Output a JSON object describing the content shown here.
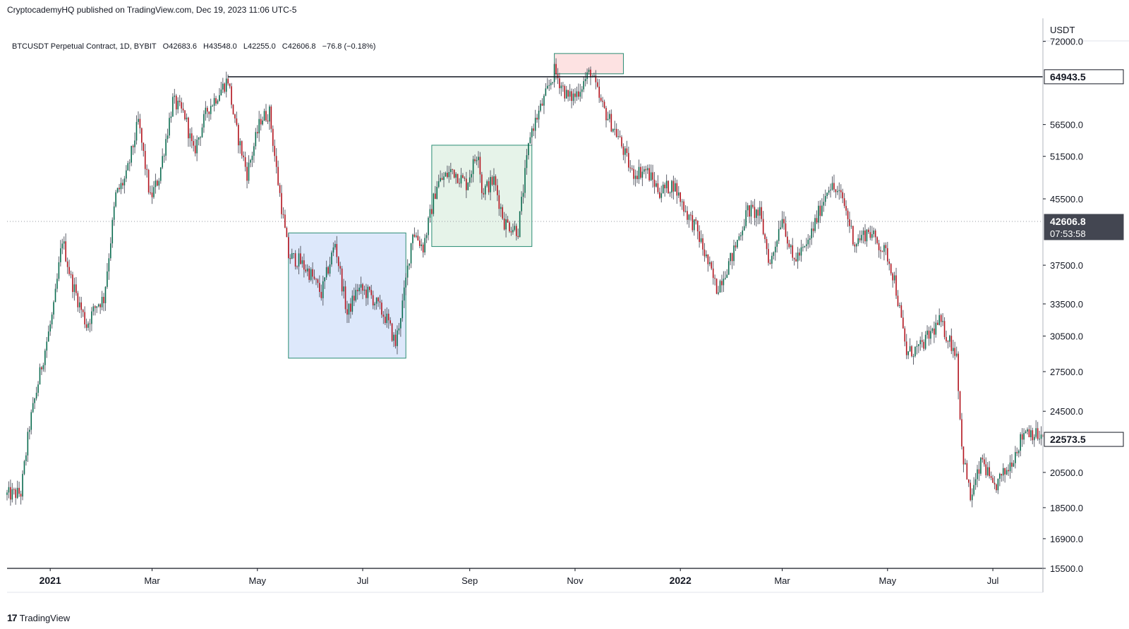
{
  "header": {
    "publish_line": "CryptocademyHQ published on TradingView.com, Dec 19, 2023 11:06 UTC-5"
  },
  "symbol": {
    "name": "BTCUSDT Perpetual Contract, 1D, BYBIT",
    "open": "O42683.6",
    "high": "H43548.0",
    "low": "L42255.0",
    "close": "C42606.8",
    "change": "−76.8 (−0.18%)"
  },
  "footer": {
    "brand": "TradingView",
    "mark": "17"
  },
  "colors": {
    "up": "#0a6b4f",
    "down": "#b3141e",
    "wick": "#5d606b",
    "blue_zone": "#dde8fb",
    "green_zone": "#e6f3e9",
    "red_zone": "#fde2e2",
    "zone_border": "#2a8c74"
  },
  "chart_data": {
    "type": "candlestick",
    "currency": "USDT",
    "y_scale": "log",
    "ylim": [
      15500,
      77000
    ],
    "x_range": [
      "2020-12-07",
      "2022-07-30"
    ],
    "x_ticks": [
      {
        "date": "2021-01-01",
        "label": "2021",
        "bold": true
      },
      {
        "date": "2021-03-01",
        "label": "Mar",
        "bold": false
      },
      {
        "date": "2021-05-01",
        "label": "May",
        "bold": false
      },
      {
        "date": "2021-07-01",
        "label": "Jul",
        "bold": false
      },
      {
        "date": "2021-09-01",
        "label": "Sep",
        "bold": false
      },
      {
        "date": "2021-11-01",
        "label": "Nov",
        "bold": false
      },
      {
        "date": "2022-01-01",
        "label": "2022",
        "bold": true
      },
      {
        "date": "2022-03-01",
        "label": "Mar",
        "bold": false
      },
      {
        "date": "2022-05-01",
        "label": "May",
        "bold": false
      },
      {
        "date": "2022-07-01",
        "label": "Jul",
        "bold": false
      }
    ],
    "y_ticks": [
      {
        "value": 72000,
        "label": "72000.0"
      },
      {
        "value": 56500,
        "label": "56500.0"
      },
      {
        "value": 51500,
        "label": "51500.0"
      },
      {
        "value": 45500,
        "label": "45500.0"
      },
      {
        "value": 37500,
        "label": "37500.0"
      },
      {
        "value": 33500,
        "label": "33500.0"
      },
      {
        "value": 30500,
        "label": "30500.0"
      },
      {
        "value": 27500,
        "label": "27500.0"
      },
      {
        "value": 24500,
        "label": "24500.0"
      },
      {
        "value": 20500,
        "label": "20500.0"
      },
      {
        "value": 18500,
        "label": "18500.0"
      },
      {
        "value": 16900,
        "label": "16900.0"
      },
      {
        "value": 15500,
        "label": "15500.0"
      }
    ],
    "horizontal_line": {
      "value": 64943.5,
      "label": "64943.5",
      "start_date": "2021-04-14"
    },
    "current_price": {
      "value": 42606.8,
      "label": "42606.8",
      "timer": "07:53:58"
    },
    "last_price": {
      "value": 22573.5,
      "label": "22573.5"
    },
    "zones": [
      {
        "name": "blue",
        "start": "2021-05-19",
        "end": "2021-07-26",
        "low": 28600,
        "high": 41200
      },
      {
        "name": "green",
        "start": "2021-08-10",
        "end": "2021-10-07",
        "low": 39600,
        "high": 53200
      },
      {
        "name": "red",
        "start": "2021-10-20",
        "end": "2021-11-29",
        "low": 65500,
        "high": 69500
      }
    ],
    "anchors": [
      [
        "2020-12-07",
        19200
      ],
      [
        "2020-12-15",
        19300
      ],
      [
        "2020-12-20",
        23500
      ],
      [
        "2020-12-27",
        28000
      ],
      [
        "2021-01-03",
        33000
      ],
      [
        "2021-01-08",
        40500
      ],
      [
        "2021-01-13",
        36000
      ],
      [
        "2021-01-22",
        31500
      ],
      [
        "2021-01-28",
        33500
      ],
      [
        "2021-02-01",
        34000
      ],
      [
        "2021-02-08",
        46000
      ],
      [
        "2021-02-14",
        48500
      ],
      [
        "2021-02-21",
        57000
      ],
      [
        "2021-02-28",
        45500
      ],
      [
        "2021-03-05",
        48500
      ],
      [
        "2021-03-13",
        60500
      ],
      [
        "2021-03-20",
        58000
      ],
      [
        "2021-03-25",
        52000
      ],
      [
        "2021-04-02",
        59000
      ],
      [
        "2021-04-14",
        64500
      ],
      [
        "2021-04-18",
        56500
      ],
      [
        "2021-04-25",
        49000
      ],
      [
        "2021-05-03",
        57500
      ],
      [
        "2021-05-08",
        58500
      ],
      [
        "2021-05-12",
        49500
      ],
      [
        "2021-05-19",
        38500
      ],
      [
        "2021-05-25",
        38000
      ],
      [
        "2021-06-01",
        36500
      ],
      [
        "2021-06-07",
        34500
      ],
      [
        "2021-06-15",
        40000
      ],
      [
        "2021-06-22",
        32500
      ],
      [
        "2021-06-28",
        35000
      ],
      [
        "2021-07-05",
        34500
      ],
      [
        "2021-07-15",
        32000
      ],
      [
        "2021-07-20",
        29800
      ],
      [
        "2021-07-25",
        34500
      ],
      [
        "2021-07-30",
        41500
      ],
      [
        "2021-08-05",
        39500
      ],
      [
        "2021-08-13",
        47500
      ],
      [
        "2021-08-22",
        49500
      ],
      [
        "2021-08-30",
        47500
      ],
      [
        "2021-09-06",
        52500
      ],
      [
        "2021-09-08",
        46500
      ],
      [
        "2021-09-15",
        48000
      ],
      [
        "2021-09-21",
        42500
      ],
      [
        "2021-09-29",
        41500
      ],
      [
        "2021-10-06",
        55000
      ],
      [
        "2021-10-15",
        61500
      ],
      [
        "2021-10-20",
        66000
      ],
      [
        "2021-10-28",
        61000
      ],
      [
        "2021-11-01",
        61500
      ],
      [
        "2021-11-10",
        66000
      ],
      [
        "2021-11-16",
        60000
      ],
      [
        "2021-11-26",
        54500
      ],
      [
        "2021-12-04",
        49000
      ],
      [
        "2021-12-12",
        49500
      ],
      [
        "2021-12-20",
        46500
      ],
      [
        "2021-12-28",
        47500
      ],
      [
        "2022-01-05",
        43500
      ],
      [
        "2022-01-10",
        41800
      ],
      [
        "2022-01-22",
        35000
      ],
      [
        "2022-01-31",
        38500
      ],
      [
        "2022-02-09",
        44000
      ],
      [
        "2022-02-16",
        43500
      ],
      [
        "2022-02-22",
        37500
      ],
      [
        "2022-03-01",
        43500
      ],
      [
        "2022-03-07",
        38000
      ],
      [
        "2022-03-15",
        39500
      ],
      [
        "2022-03-28",
        47500
      ],
      [
        "2022-04-05",
        45500
      ],
      [
        "2022-04-12",
        40000
      ],
      [
        "2022-04-20",
        41500
      ],
      [
        "2022-05-01",
        38500
      ],
      [
        "2022-05-05",
        36000
      ],
      [
        "2022-05-12",
        29000
      ],
      [
        "2022-05-20",
        29500
      ],
      [
        "2022-05-31",
        31800
      ],
      [
        "2022-06-10",
        29000
      ],
      [
        "2022-06-13",
        22000
      ],
      [
        "2022-06-18",
        19000
      ],
      [
        "2022-06-25",
        21300
      ],
      [
        "2022-07-01",
        19500
      ],
      [
        "2022-07-10",
        20800
      ],
      [
        "2022-07-20",
        23300
      ],
      [
        "2022-07-30",
        22600
      ]
    ]
  }
}
